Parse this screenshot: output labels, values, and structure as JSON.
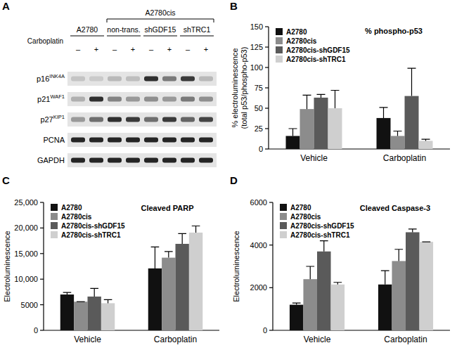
{
  "panel_labels": [
    "A",
    "B",
    "C",
    "D"
  ],
  "blot": {
    "treatment_label": "Carboplatin",
    "columns": [
      {
        "label": "A2780",
        "carboplatin": [
          "–",
          "+"
        ]
      },
      {
        "label": "A2780cis",
        "subgroups": [
          {
            "label": "non-trans.",
            "carboplatin": [
              "–",
              "+"
            ]
          },
          {
            "label": "shGDF15",
            "carboplatin": [
              "–",
              "+"
            ]
          },
          {
            "label": "shTRC1",
            "carboplatin": [
              "–",
              "+"
            ]
          }
        ]
      }
    ],
    "rows": [
      {
        "name": "p16",
        "superscript": "INK4A",
        "intensity": [
          0.15,
          0.12,
          0.2,
          0.18,
          0.85,
          0.5,
          0.8,
          0.2
        ]
      },
      {
        "name": "p21",
        "superscript": "WAF1",
        "intensity": [
          0.25,
          0.85,
          0.45,
          0.35,
          0.4,
          0.35,
          0.5,
          0.4
        ]
      },
      {
        "name": "p27",
        "superscript": "KIP1",
        "intensity": [
          0.35,
          0.55,
          0.85,
          0.8,
          0.55,
          0.8,
          0.6,
          0.75
        ]
      },
      {
        "name": "PCNA",
        "intensity": [
          0.9,
          0.9,
          0.9,
          0.9,
          0.9,
          0.9,
          0.9,
          0.9
        ]
      },
      {
        "name": "GAPDH",
        "intensity": [
          0.9,
          0.9,
          0.9,
          0.9,
          0.9,
          0.9,
          0.9,
          0.9
        ]
      }
    ]
  },
  "chart_data": [
    {
      "type": "bar",
      "title": "% phospho-p53",
      "y_label": [
        "% electroluminescence",
        "(total p53/phospho-p53)"
      ],
      "categories": [
        "Vehicle",
        "Carboplatin"
      ],
      "series": [
        {
          "name": "A2780",
          "color": "#111111",
          "values": [
            16,
            38
          ],
          "errors": [
            9,
            13
          ]
        },
        {
          "name": "A2780cis",
          "color": "#8c8c8c",
          "values": [
            49,
            16
          ],
          "errors": [
            17,
            6
          ]
        },
        {
          "name": "A2780cis-shGDF15",
          "color": "#5a5a5a",
          "values": [
            63,
            65
          ],
          "errors": [
            4,
            34
          ]
        },
        {
          "name": "A2780cis-shTRC1",
          "color": "#cfcfcf",
          "values": [
            50,
            10
          ],
          "errors": [
            22,
            2
          ]
        }
      ],
      "ylim": [
        0,
        150
      ],
      "yticks": [
        0,
        25,
        50,
        75,
        100,
        125,
        150
      ],
      "legend": "top-left"
    },
    {
      "type": "bar",
      "title": "Cleaved PARP",
      "y_label": "Electroluminescence",
      "categories": [
        "Vehicle",
        "Carboplatin"
      ],
      "series": [
        {
          "name": "A2780",
          "color": "#111111",
          "values": [
            7000,
            12100
          ],
          "errors": [
            400,
            4200
          ]
        },
        {
          "name": "A2780cis",
          "color": "#8c8c8c",
          "values": [
            5600,
            14200
          ],
          "errors": [
            0,
            1200
          ]
        },
        {
          "name": "A2780cis-shGDF15",
          "color": "#5a5a5a",
          "values": [
            6600,
            16900
          ],
          "errors": [
            1600,
            2000
          ]
        },
        {
          "name": "A2780cis-shTRC1",
          "color": "#cfcfcf",
          "values": [
            5300,
            19100
          ],
          "errors": [
            700,
            1300
          ]
        }
      ],
      "ylim": [
        0,
        25000
      ],
      "yticks": [
        0,
        5000,
        {
          "value": 10000,
          "label": "10,000"
        },
        {
          "value": 15000,
          "label": "15,000"
        },
        {
          "value": 20000,
          "label": "20,000"
        },
        {
          "value": 25000,
          "label": "25,000"
        }
      ],
      "legend": "top-left"
    },
    {
      "type": "bar",
      "title": "Cleaved Caspase-3",
      "y_label": "Electroluminescence",
      "categories": [
        "Vehicle",
        "Carboplatin"
      ],
      "series": [
        {
          "name": "A2780",
          "color": "#111111",
          "values": [
            1200,
            2150
          ],
          "errors": [
            80,
            650
          ]
        },
        {
          "name": "A2780cis",
          "color": "#8c8c8c",
          "values": [
            2400,
            3250
          ],
          "errors": [
            600,
            550
          ]
        },
        {
          "name": "A2780cis-shGDF15",
          "color": "#5a5a5a",
          "values": [
            3700,
            4600
          ],
          "errors": [
            500,
            150
          ]
        },
        {
          "name": "A2780cis-shTRC1",
          "color": "#cfcfcf",
          "values": [
            2150,
            4150
          ],
          "errors": [
            100,
            0
          ]
        }
      ],
      "ylim": [
        0,
        6000
      ],
      "yticks": [
        0,
        2000,
        4000,
        6000
      ],
      "legend": "top-left"
    }
  ]
}
